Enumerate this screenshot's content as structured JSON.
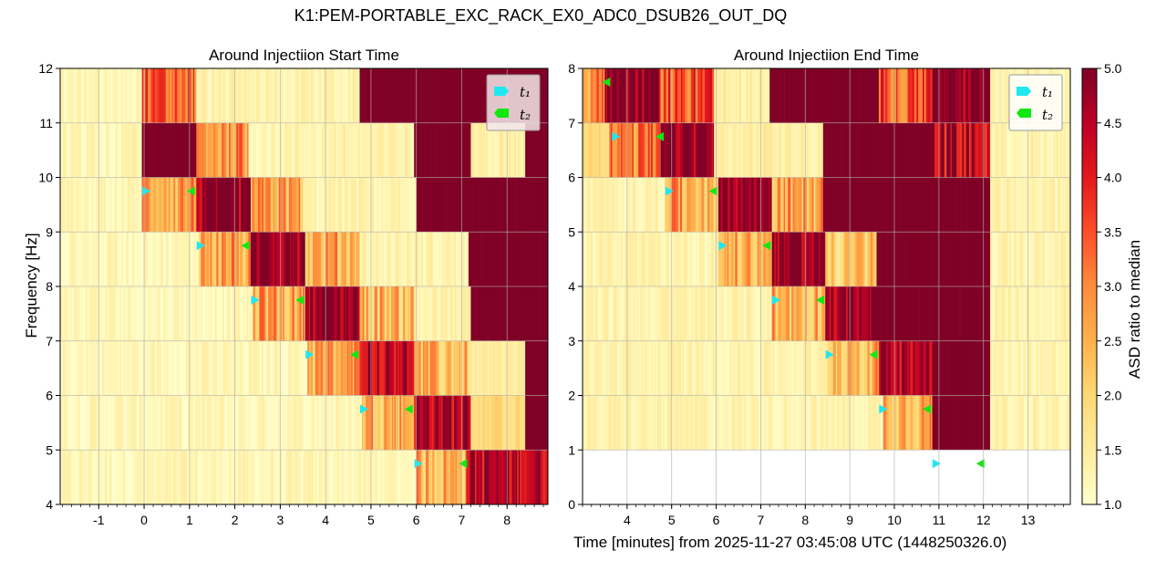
{
  "figure": {
    "suptitle": "K1:PEM-PORTABLE_EXC_RACK_EX0_ADC0_DSUB26_OUT_DQ",
    "xlabel": "Time [minutes] from 2025-11-27 03:45:08 UTC (1448250326.0)",
    "ylabel": "Frequency [Hz]",
    "colorbar_label": "ASD ratio to median"
  },
  "colors": {
    "t1_marker": "#1ee8f0",
    "t2_marker": "#11e811",
    "cmap": [
      "#ffffcc",
      "#ffeda0",
      "#fed976",
      "#feb24c",
      "#fd8d3c",
      "#fc4e2a",
      "#e31a1c",
      "#bd0026",
      "#800026"
    ]
  },
  "chart_data": [
    {
      "type": "heatmap",
      "title": "Around Injectiion Start Time",
      "xlim": [
        -1.85,
        8.9
      ],
      "ylim": [
        4,
        12
      ],
      "xticks": [
        -1,
        0,
        1,
        2,
        3,
        4,
        5,
        6,
        7,
        8
      ],
      "xtick_labels": [
        "-1",
        "0",
        "1",
        "2",
        "3",
        "4",
        "5",
        "6",
        "7",
        "8"
      ],
      "yticks": [
        4,
        5,
        6,
        7,
        8,
        9,
        10,
        11,
        12
      ],
      "ytick_labels": [
        "4",
        "5",
        "6",
        "7",
        "8",
        "9",
        "10",
        "11",
        "12"
      ],
      "legend": {
        "position": "top-right",
        "entries": [
          "t₁",
          "t₂"
        ]
      },
      "bands": [
        {
          "f": [
            4,
            5
          ],
          "segments": [
            [
              -1.85,
              6.0,
              1.2
            ],
            [
              6.0,
              7.1,
              2.5
            ],
            [
              7.1,
              8.9,
              4.4
            ]
          ],
          "t1": 6.04,
          "t2": 7.04
        },
        {
          "f": [
            5,
            6
          ],
          "segments": [
            [
              -1.85,
              4.8,
              1.2
            ],
            [
              4.8,
              5.95,
              2.6
            ],
            [
              5.95,
              7.2,
              4.5
            ],
            [
              7.2,
              8.4,
              1.9
            ],
            [
              8.4,
              8.9,
              5.0
            ]
          ],
          "t1": 4.84,
          "t2": 5.84
        },
        {
          "f": [
            6,
            7
          ],
          "segments": [
            [
              -1.85,
              3.6,
              1.2
            ],
            [
              3.6,
              4.75,
              2.6
            ],
            [
              4.75,
              5.95,
              4.5
            ],
            [
              5.95,
              7.2,
              2.3
            ],
            [
              7.2,
              8.4,
              1.4
            ],
            [
              8.4,
              8.9,
              5.0
            ]
          ],
          "t1": 3.64,
          "t2": 4.64
        },
        {
          "f": [
            7,
            8
          ],
          "segments": [
            [
              -1.85,
              2.4,
              1.2
            ],
            [
              2.4,
              3.55,
              2.6
            ],
            [
              3.55,
              4.75,
              4.8
            ],
            [
              4.75,
              5.95,
              2.4
            ],
            [
              5.95,
              7.2,
              1.3
            ],
            [
              7.2,
              8.9,
              5.0
            ]
          ],
          "t1": 2.44,
          "t2": 3.44
        },
        {
          "f": [
            8,
            9
          ],
          "segments": [
            [
              -1.85,
              1.2,
              1.2
            ],
            [
              1.2,
              2.35,
              2.6
            ],
            [
              2.35,
              3.55,
              4.9
            ],
            [
              3.55,
              4.75,
              2.5
            ],
            [
              4.75,
              7.15,
              1.3
            ],
            [
              7.15,
              8.9,
              5.0
            ]
          ],
          "t1": 1.24,
          "t2": 2.24
        },
        {
          "f": [
            9,
            10
          ],
          "segments": [
            [
              -1.85,
              -0.05,
              1.2
            ],
            [
              -0.05,
              1.15,
              2.7
            ],
            [
              1.15,
              2.35,
              4.7
            ],
            [
              2.35,
              3.5,
              2.6
            ],
            [
              3.5,
              6.0,
              1.3
            ],
            [
              6.0,
              8.4,
              5.0
            ],
            [
              8.4,
              8.9,
              5.0
            ]
          ],
          "t1": 0.04,
          "t2": 1.04
        },
        {
          "f": [
            10,
            11
          ],
          "segments": [
            [
              -1.85,
              -0.05,
              1.2
            ],
            [
              -0.05,
              1.15,
              5.0
            ],
            [
              1.15,
              2.3,
              2.8
            ],
            [
              2.3,
              5.95,
              1.3
            ],
            [
              5.95,
              7.2,
              5.0
            ],
            [
              7.2,
              8.4,
              1.4
            ],
            [
              8.4,
              8.9,
              5.0
            ]
          ],
          "t1": null,
          "t2": null
        },
        {
          "f": [
            11,
            12
          ],
          "segments": [
            [
              -1.85,
              -0.05,
              1.2
            ],
            [
              -0.05,
              1.15,
              3.2
            ],
            [
              1.15,
              4.75,
              1.3
            ],
            [
              4.75,
              8.9,
              5.0
            ]
          ],
          "t1": null,
          "t2": null
        }
      ]
    },
    {
      "type": "heatmap",
      "title": "Around Injectiion End Time",
      "xlim": [
        3.0,
        13.95
      ],
      "ylim": [
        0,
        8
      ],
      "xticks": [
        4,
        5,
        6,
        7,
        8,
        9,
        10,
        11,
        12,
        13
      ],
      "xtick_labels": [
        "4",
        "5",
        "6",
        "7",
        "8",
        "9",
        "10",
        "11",
        "12",
        "13"
      ],
      "yticks": [
        0,
        1,
        2,
        3,
        4,
        5,
        6,
        7,
        8
      ],
      "ytick_labels": [
        "0",
        "1",
        "2",
        "3",
        "4",
        "5",
        "6",
        "7",
        "8"
      ],
      "legend": {
        "position": "top-right",
        "entries": [
          "t₁",
          "t₂"
        ]
      },
      "bands": [
        {
          "f": [
            0,
            1
          ],
          "segments": [],
          "t1": 10.94,
          "t2": 11.94
        },
        {
          "f": [
            1,
            2
          ],
          "segments": [
            [
              3.0,
              9.75,
              1.3
            ],
            [
              9.75,
              10.85,
              2.6
            ],
            [
              10.85,
              12.15,
              5.0
            ],
            [
              12.15,
              13.95,
              1.3
            ]
          ],
          "t1": 9.74,
          "t2": 10.74
        },
        {
          "f": [
            2,
            3
          ],
          "segments": [
            [
              3.0,
              8.5,
              1.3
            ],
            [
              8.5,
              9.65,
              2.5
            ],
            [
              9.65,
              10.85,
              4.6
            ],
            [
              10.85,
              12.15,
              5.0
            ],
            [
              12.15,
              13.95,
              1.3
            ]
          ],
          "t1": 8.54,
          "t2": 9.54
        },
        {
          "f": [
            3,
            4
          ],
          "segments": [
            [
              3.0,
              7.25,
              1.3
            ],
            [
              7.25,
              8.45,
              2.5
            ],
            [
              8.45,
              9.65,
              4.7
            ],
            [
              9.65,
              12.15,
              5.0
            ],
            [
              12.15,
              13.95,
              1.3
            ]
          ],
          "t1": 7.34,
          "t2": 8.34
        },
        {
          "f": [
            4,
            5
          ],
          "segments": [
            [
              3.0,
              6.05,
              1.3
            ],
            [
              6.05,
              7.25,
              2.5
            ],
            [
              7.25,
              8.45,
              4.8
            ],
            [
              8.45,
              9.6,
              2.2
            ],
            [
              9.6,
              12.15,
              5.0
            ],
            [
              12.15,
              13.95,
              1.3
            ]
          ],
          "t1": 6.14,
          "t2": 7.14
        },
        {
          "f": [
            5,
            6
          ],
          "segments": [
            [
              3.0,
              4.85,
              1.3
            ],
            [
              4.85,
              6.05,
              2.6
            ],
            [
              6.05,
              7.25,
              4.8
            ],
            [
              7.25,
              8.4,
              2.6
            ],
            [
              8.4,
              12.15,
              5.0
            ],
            [
              12.15,
              13.95,
              1.3
            ]
          ],
          "t1": 4.94,
          "t2": 5.94
        },
        {
          "f": [
            6,
            7
          ],
          "segments": [
            [
              3.0,
              3.6,
              2.0
            ],
            [
              3.6,
              4.75,
              3.0
            ],
            [
              4.75,
              5.95,
              4.8
            ],
            [
              5.95,
              8.4,
              1.4
            ],
            [
              8.4,
              10.9,
              5.0
            ],
            [
              10.9,
              12.15,
              4.3
            ],
            [
              12.15,
              13.95,
              1.3
            ]
          ],
          "t1": 3.74,
          "t2": 4.74
        },
        {
          "f": [
            7,
            8
          ],
          "segments": [
            [
              3.0,
              3.5,
              3.0
            ],
            [
              3.5,
              4.75,
              4.7
            ],
            [
              4.75,
              5.95,
              3.4
            ],
            [
              5.95,
              7.2,
              1.4
            ],
            [
              7.2,
              9.65,
              5.0
            ],
            [
              9.65,
              10.85,
              3.4
            ],
            [
              10.85,
              12.15,
              4.8
            ],
            [
              12.15,
              13.95,
              1.3
            ]
          ],
          "t1": null,
          "t2": 3.54
        }
      ]
    },
    {
      "type": "colorbar",
      "vmin": 1.0,
      "vmax": 5.0,
      "ticks": [
        1.0,
        1.5,
        2.0,
        2.5,
        3.0,
        3.5,
        4.0,
        4.5,
        5.0
      ],
      "tick_labels": [
        "1.0",
        "1.5",
        "2.0",
        "2.5",
        "3.0",
        "3.5",
        "4.0",
        "4.5",
        "5.0"
      ]
    }
  ]
}
